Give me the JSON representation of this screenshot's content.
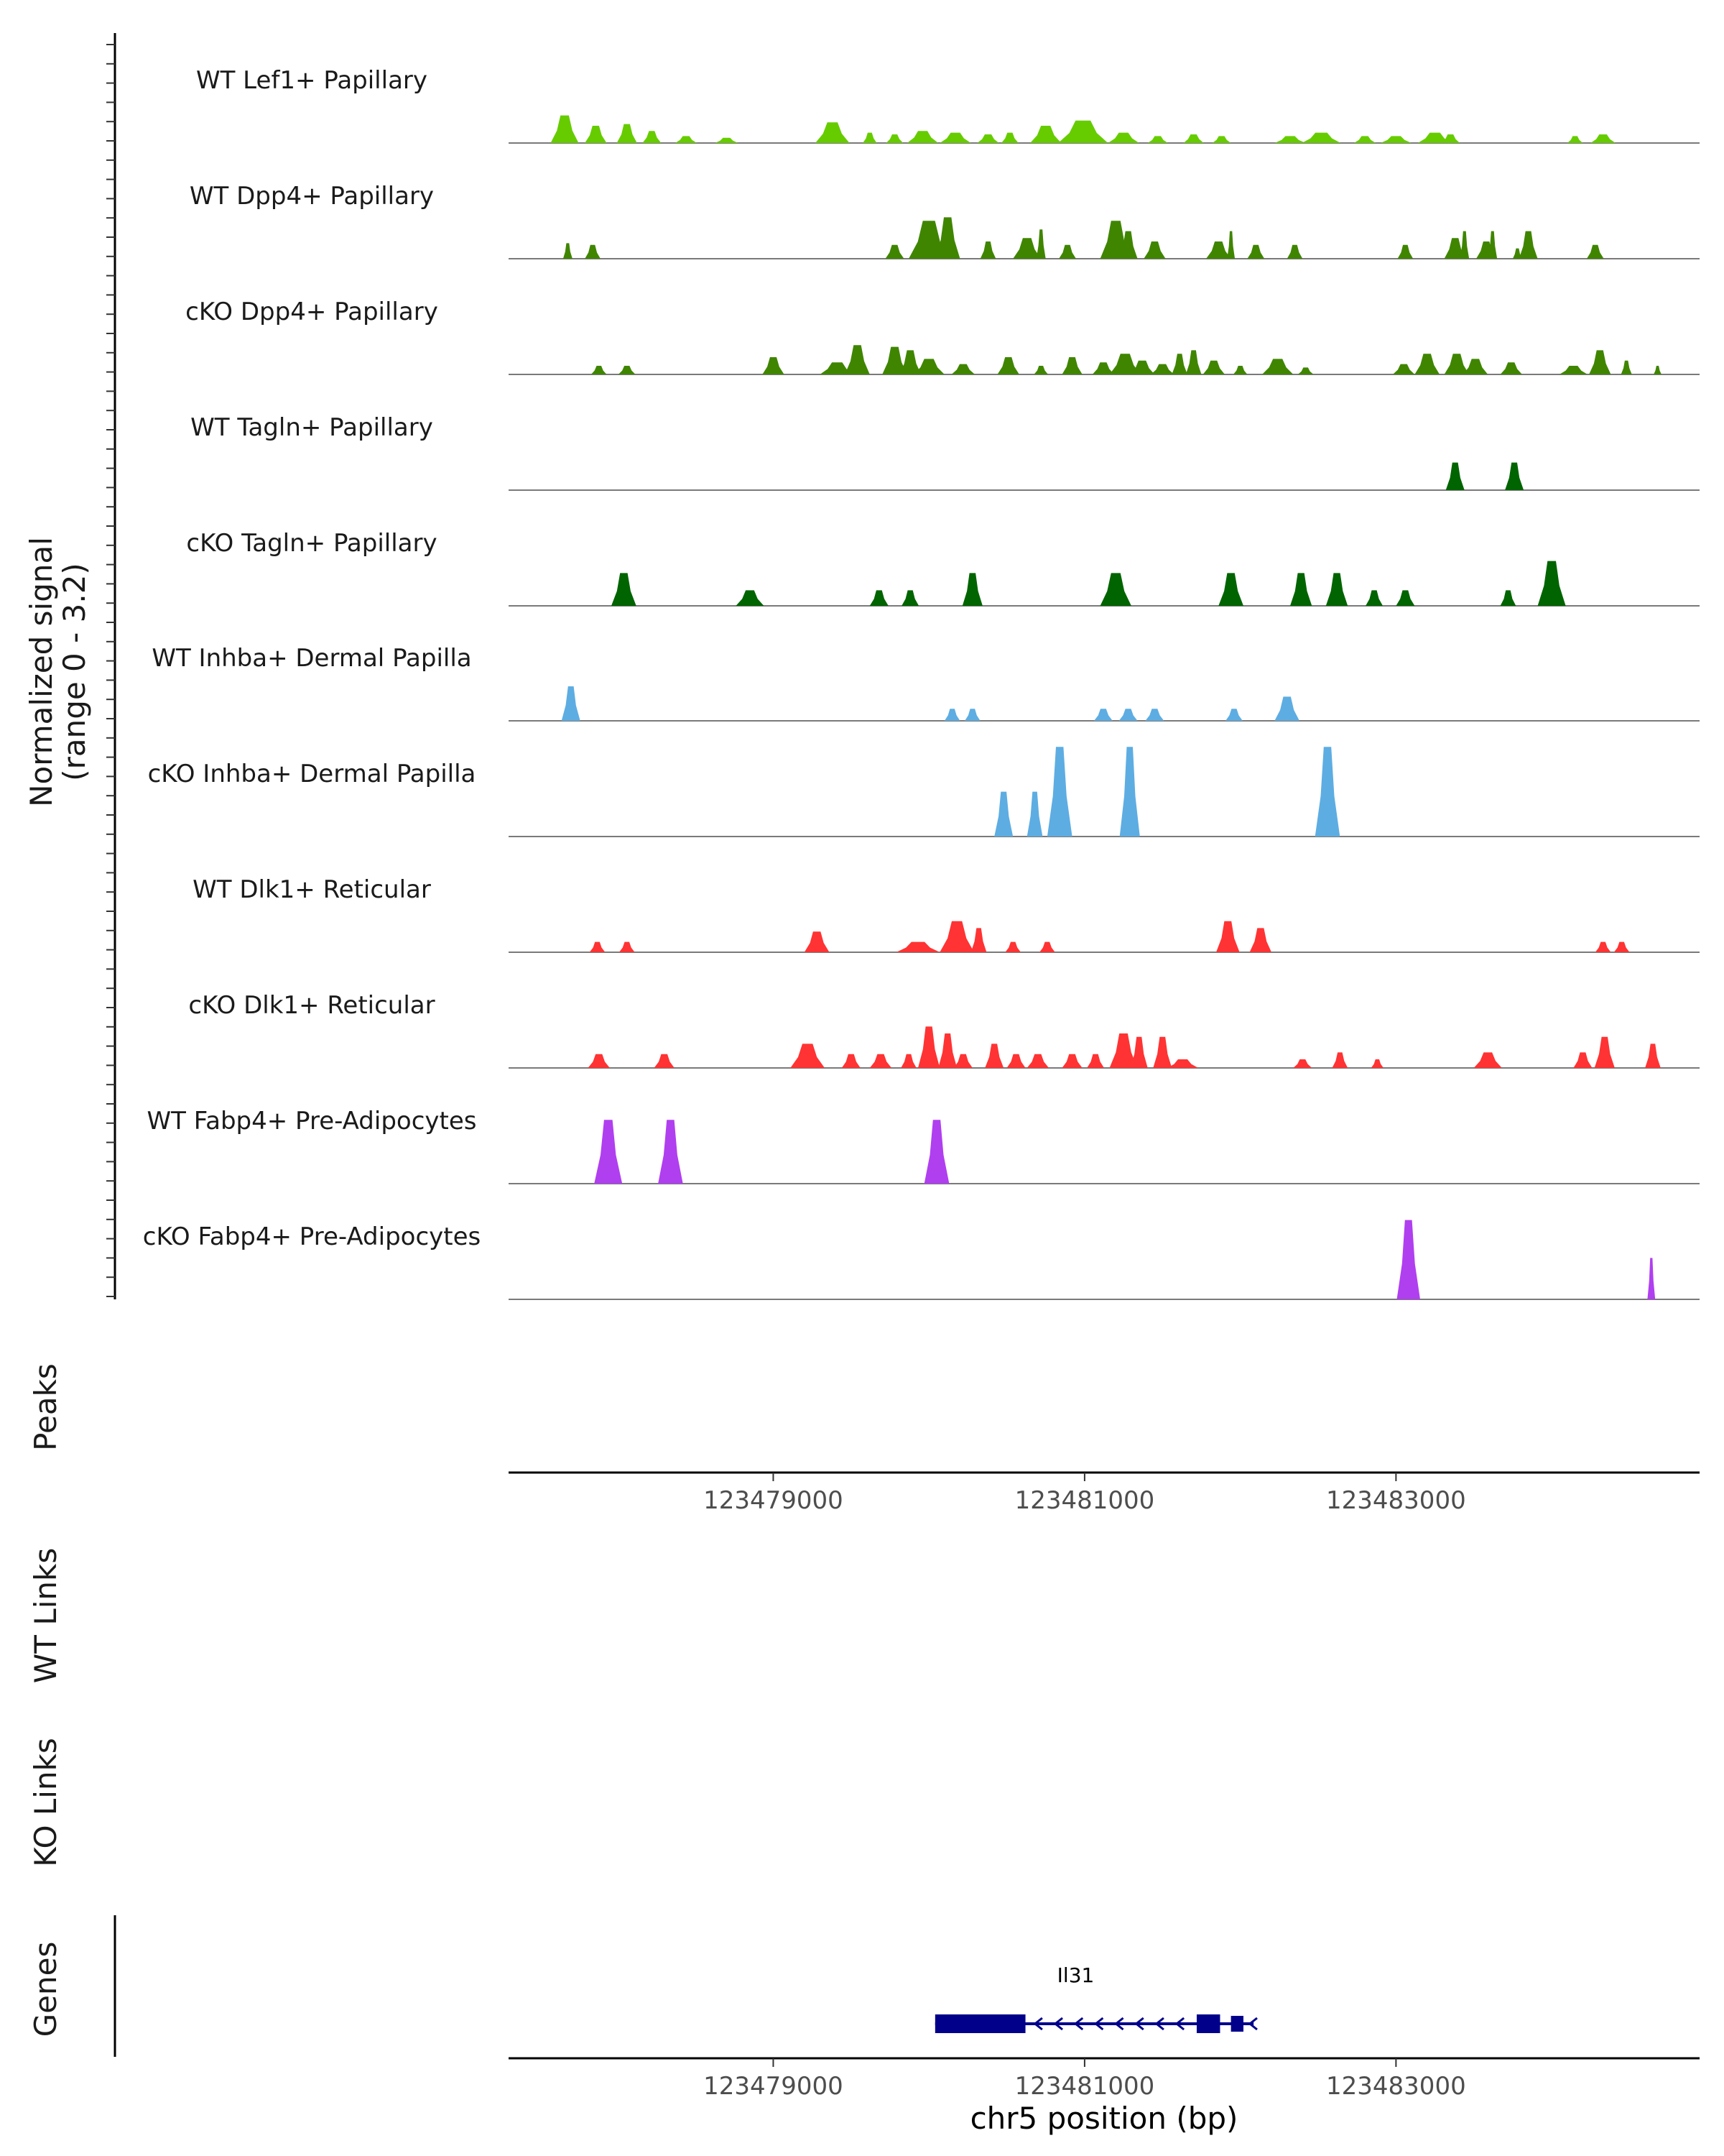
{
  "chart_data": {
    "type": "area",
    "title": "",
    "region": "chr5",
    "signal_ylabel_line1": "Normalized signal",
    "signal_ylabel_line2": "(range 0 - 3.2)",
    "signal_ylim": [
      0,
      3.2
    ],
    "xlim": [
      123477300,
      123484950
    ],
    "xticks": [
      123479000,
      123481000,
      123483000
    ],
    "xtick_labels": [
      "123479000",
      "123481000",
      "123483000"
    ],
    "xlabel": "chr5 position (bp)",
    "panel_labels": {
      "peaks": "Peaks",
      "wt_links": "WT Links",
      "ko_links": "KO Links",
      "genes": "Genes"
    },
    "tracks": [
      {
        "name": "WT Lef1+ Papillary",
        "color": "#66CC00",
        "peaks": [
          [
            123477660,
            0.8,
            180
          ],
          [
            123477860,
            0.5,
            140
          ],
          [
            123478060,
            0.55,
            130
          ],
          [
            123478220,
            0.35,
            120
          ],
          [
            123478440,
            0.2,
            140
          ],
          [
            123478700,
            0.15,
            150
          ],
          [
            123479380,
            0.6,
            220
          ],
          [
            123479620,
            0.3,
            90
          ],
          [
            123479780,
            0.25,
            110
          ],
          [
            123479960,
            0.35,
            200
          ],
          [
            123480170,
            0.3,
            200
          ],
          [
            123480380,
            0.25,
            140
          ],
          [
            123480520,
            0.3,
            110
          ],
          [
            123480750,
            0.5,
            200
          ],
          [
            123480990,
            0.65,
            320
          ],
          [
            123481250,
            0.3,
            200
          ],
          [
            123481470,
            0.2,
            130
          ],
          [
            123481700,
            0.25,
            130
          ],
          [
            123481880,
            0.2,
            120
          ],
          [
            123482320,
            0.2,
            200
          ],
          [
            123482520,
            0.3,
            250
          ],
          [
            123482800,
            0.2,
            140
          ],
          [
            123483000,
            0.2,
            200
          ],
          [
            123483250,
            0.3,
            220
          ],
          [
            123483350,
            0.25,
            120
          ],
          [
            123484150,
            0.2,
            100
          ],
          [
            123484330,
            0.25,
            160
          ]
        ]
      },
      {
        "name": "WT Dpp4+ Papillary",
        "color": "#3F8500",
        "peaks": [
          [
            123477680,
            0.45,
            60
          ],
          [
            123477840,
            0.4,
            100
          ],
          [
            123479780,
            0.4,
            120
          ],
          [
            123480000,
            1.1,
            260
          ],
          [
            123480120,
            1.2,
            160
          ],
          [
            123480380,
            0.5,
            100
          ],
          [
            123480630,
            0.6,
            180
          ],
          [
            123480720,
            0.85,
            60
          ],
          [
            123480890,
            0.4,
            110
          ],
          [
            123481200,
            1.1,
            200
          ],
          [
            123481280,
            0.8,
            120
          ],
          [
            123481450,
            0.5,
            140
          ],
          [
            123481860,
            0.5,
            160
          ],
          [
            123481940,
            0.8,
            50
          ],
          [
            123482100,
            0.4,
            110
          ],
          [
            123482350,
            0.4,
            100
          ],
          [
            123483060,
            0.4,
            100
          ],
          [
            123483380,
            0.6,
            140
          ],
          [
            123483440,
            0.8,
            60
          ],
          [
            123483580,
            0.5,
            130
          ],
          [
            123483620,
            0.8,
            60
          ],
          [
            123483780,
            0.3,
            60
          ],
          [
            123483850,
            0.8,
            120
          ],
          [
            123484280,
            0.4,
            110
          ]
        ]
      },
      {
        "name": "cKO Dpp4+ Papillary",
        "color": "#3F8500",
        "peaks": [
          [
            123477880,
            0.25,
            100
          ],
          [
            123478060,
            0.25,
            110
          ],
          [
            123479000,
            0.5,
            140
          ],
          [
            123479410,
            0.35,
            220
          ],
          [
            123479540,
            0.85,
            160
          ],
          [
            123479780,
            0.8,
            160
          ],
          [
            123479880,
            0.7,
            140
          ],
          [
            123480000,
            0.45,
            200
          ],
          [
            123480220,
            0.3,
            150
          ],
          [
            123480510,
            0.5,
            140
          ],
          [
            123480720,
            0.25,
            90
          ],
          [
            123480920,
            0.5,
            130
          ],
          [
            123481120,
            0.35,
            140
          ],
          [
            123481260,
            0.6,
            200
          ],
          [
            123481370,
            0.4,
            160
          ],
          [
            123481500,
            0.3,
            150
          ],
          [
            123481610,
            0.6,
            100
          ],
          [
            123481700,
            0.7,
            100
          ],
          [
            123481830,
            0.4,
            140
          ],
          [
            123482000,
            0.25,
            90
          ],
          [
            123482240,
            0.45,
            200
          ],
          [
            123482420,
            0.2,
            100
          ],
          [
            123483050,
            0.3,
            140
          ],
          [
            123483200,
            0.6,
            160
          ],
          [
            123483390,
            0.6,
            160
          ],
          [
            123483510,
            0.45,
            160
          ],
          [
            123483740,
            0.35,
            140
          ],
          [
            123484140,
            0.25,
            180
          ],
          [
            123484310,
            0.7,
            140
          ],
          [
            123484480,
            0.4,
            70
          ],
          [
            123484680,
            0.25,
            50
          ]
        ]
      },
      {
        "name": "WT Tagln+ Papillary",
        "color": "#006400",
        "peaks": [
          [
            123483380,
            0.8,
            120
          ],
          [
            123483760,
            0.8,
            120
          ]
        ]
      },
      {
        "name": "cKO Tagln+ Papillary",
        "color": "#006400",
        "peaks": [
          [
            123478040,
            0.95,
            160
          ],
          [
            123478850,
            0.45,
            180
          ],
          [
            123479680,
            0.45,
            120
          ],
          [
            123479880,
            0.45,
            110
          ],
          [
            123480280,
            0.95,
            130
          ],
          [
            123481200,
            0.95,
            200
          ],
          [
            123481940,
            0.95,
            160
          ],
          [
            123482390,
            0.95,
            140
          ],
          [
            123482620,
            0.95,
            140
          ],
          [
            123482860,
            0.45,
            110
          ],
          [
            123483060,
            0.45,
            120
          ],
          [
            123483720,
            0.45,
            100
          ],
          [
            123484000,
            1.3,
            180
          ]
        ]
      },
      {
        "name": "WT Inhba+ Dermal Papilla",
        "color": "#5DADE2",
        "peaks": [
          [
            123477700,
            1.0,
            120
          ],
          [
            123480150,
            0.35,
            100
          ],
          [
            123480280,
            0.35,
            100
          ],
          [
            123481120,
            0.35,
            120
          ],
          [
            123481280,
            0.35,
            120
          ],
          [
            123481450,
            0.35,
            120
          ],
          [
            123481960,
            0.35,
            110
          ],
          [
            123482300,
            0.7,
            160
          ]
        ]
      },
      {
        "name": "cKO Inhba+ Dermal Papilla",
        "color": "#5DADE2",
        "peaks": [
          [
            123480480,
            1.3,
            120
          ],
          [
            123480680,
            1.3,
            100
          ],
          [
            123480840,
            2.6,
            160
          ],
          [
            123481290,
            2.6,
            130
          ],
          [
            123482560,
            2.6,
            160
          ]
        ]
      },
      {
        "name": "WT Dlk1+ Reticular",
        "color": "#FF3333",
        "peaks": [
          [
            123477870,
            0.3,
            100
          ],
          [
            123478060,
            0.3,
            100
          ],
          [
            123479280,
            0.6,
            160
          ],
          [
            123479930,
            0.3,
            280
          ],
          [
            123480180,
            0.9,
            220
          ],
          [
            123480320,
            0.7,
            100
          ],
          [
            123480540,
            0.3,
            100
          ],
          [
            123480760,
            0.3,
            100
          ],
          [
            123481920,
            0.9,
            150
          ],
          [
            123482130,
            0.7,
            140
          ],
          [
            123484330,
            0.3,
            100
          ],
          [
            123484450,
            0.3,
            100
          ]
        ]
      },
      {
        "name": "cKO Dlk1+ Reticular",
        "color": "#FF3333",
        "peaks": [
          [
            123477880,
            0.4,
            140
          ],
          [
            123478300,
            0.4,
            130
          ],
          [
            123479220,
            0.7,
            220
          ],
          [
            123479500,
            0.4,
            120
          ],
          [
            123479690,
            0.4,
            140
          ],
          [
            123479870,
            0.4,
            100
          ],
          [
            123480000,
            1.2,
            140
          ],
          [
            123480120,
            1.0,
            120
          ],
          [
            123480220,
            0.4,
            120
          ],
          [
            123480420,
            0.7,
            120
          ],
          [
            123480560,
            0.4,
            120
          ],
          [
            123480700,
            0.4,
            140
          ],
          [
            123480920,
            0.4,
            130
          ],
          [
            123481070,
            0.4,
            110
          ],
          [
            123481250,
            1.0,
            180
          ],
          [
            123481350,
            0.9,
            110
          ],
          [
            123481500,
            0.9,
            120
          ],
          [
            123481630,
            0.25,
            200
          ],
          [
            123482400,
            0.25,
            120
          ],
          [
            123482640,
            0.45,
            100
          ],
          [
            123482880,
            0.25,
            80
          ],
          [
            123483590,
            0.45,
            180
          ],
          [
            123484200,
            0.45,
            120
          ],
          [
            123484340,
            0.9,
            130
          ],
          [
            123484650,
            0.7,
            100
          ]
        ]
      },
      {
        "name": "WT Fabp4+ Pre-Adipocytes",
        "color": "#B03FF0",
        "peaks": [
          [
            123477940,
            1.85,
            180
          ],
          [
            123478340,
            1.85,
            160
          ],
          [
            123480050,
            1.85,
            160
          ]
        ]
      },
      {
        "name": "cKO Fabp4+ Pre-Adipocytes",
        "color": "#B03FF0",
        "peaks": [
          [
            123483080,
            2.3,
            150
          ],
          [
            123484640,
            1.2,
            50
          ]
        ]
      }
    ],
    "gene": {
      "label": "Il31",
      "strand": "-",
      "color": "#00008B",
      "span": [
        123480040,
        123482030
      ],
      "exons": [
        [
          123480040,
          123480620
        ],
        [
          123481720,
          123481870
        ],
        [
          123481940,
          123482020
        ]
      ]
    }
  }
}
